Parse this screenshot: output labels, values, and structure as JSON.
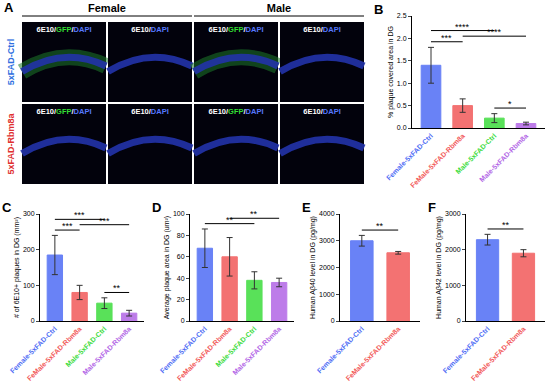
{
  "panel_a": {
    "panel": "A",
    "separator": "/",
    "groups": [
      "Female",
      "Male"
    ],
    "rows": [
      {
        "label": "5xFAD-Ctrl",
        "color": "#2f6fe0"
      },
      {
        "label": "5xFAD-Rbm8a",
        "color": "#e03030"
      }
    ],
    "columns": [
      [
        {
          "text": "6E10",
          "color": "#ffffff"
        },
        {
          "text": "GFP",
          "color": "#33dd33"
        },
        {
          "text": "DAPI",
          "color": "#5577ff"
        }
      ],
      [
        {
          "text": "6E10",
          "color": "#ffffff"
        },
        {
          "text": "DAPI",
          "color": "#5577ff"
        }
      ],
      [
        {
          "text": "6E10",
          "color": "#ffffff"
        },
        {
          "text": "GFP",
          "color": "#33dd33"
        },
        {
          "text": "DAPI",
          "color": "#5577ff"
        }
      ],
      [
        {
          "text": "6E10",
          "color": "#ffffff"
        },
        {
          "text": "DAPI",
          "color": "#5577ff"
        }
      ]
    ]
  },
  "chart_data": [
    {
      "type": "bar",
      "panel": "B",
      "y_label": "% plaque covered area in DG",
      "categories": [
        "Female-5xFAD-Ctrl",
        "FeMale-5xFAD-Rbm8a",
        "Male-5xFAD-Ctrl",
        "Male-5xFAD-Rbm8a"
      ],
      "colors": [
        "#4f6df5",
        "#f25a5a",
        "#3ddc3d",
        "#b266e6"
      ],
      "values": [
        1.4,
        0.5,
        0.22,
        0.1
      ],
      "error": [
        0.4,
        0.15,
        0.1,
        0.03
      ],
      "ylim": [
        0,
        2.5
      ],
      "yticks": [
        {
          "value": 0,
          "label": "0.0"
        },
        {
          "value": 0.5,
          "label": "0.5"
        },
        {
          "value": 1,
          "label": "1.0"
        },
        {
          "value": 1.5,
          "label": "1.5"
        },
        {
          "value": 2,
          "label": "2.0"
        },
        {
          "value": 2.5,
          "label": "2.5"
        }
      ],
      "comparisons": [
        {
          "pair": [
            0,
            1
          ],
          "label": "***"
        },
        {
          "pair": [
            2,
            3
          ],
          "label": "*"
        },
        {
          "pair": [
            1,
            3
          ],
          "label": "****"
        },
        {
          "pair": [
            0,
            2
          ],
          "label": "****"
        }
      ]
    },
    {
      "type": "bar",
      "panel": "C",
      "y_label": "# of 6E10+ plaques in DG (mm²)",
      "categories": [
        "Female-5xFAD-Ctrl",
        "FeMale-5xFAD-Rbm8a",
        "Male-5xFAD-Ctrl",
        "Male-5xFAD-Rbm8a"
      ],
      "colors": [
        "#4f6df5",
        "#f25a5a",
        "#3ddc3d",
        "#b266e6"
      ],
      "values": [
        185,
        80,
        50,
        22
      ],
      "error": [
        55,
        20,
        15,
        8
      ],
      "ylim": [
        0,
        300
      ],
      "yticks": [
        0,
        100,
        200,
        300
      ],
      "comparisons": [
        {
          "pair": [
            0,
            1
          ],
          "label": "***"
        },
        {
          "pair": [
            2,
            3
          ],
          "label": "**"
        },
        {
          "pair": [
            1,
            3
          ],
          "label": "***"
        },
        {
          "pair": [
            0,
            2
          ],
          "label": "***"
        }
      ]
    },
    {
      "type": "bar",
      "panel": "D",
      "y_label": "Average plaque area in DG (um²)",
      "categories": [
        "Female-5xFAD-Ctrl",
        "FeMale-5xFAD-Rbm8a",
        "Male-5xFAD-Ctrl",
        "Male-5xFAD-Rbm8a"
      ],
      "colors": [
        "#4f6df5",
        "#f25a5a",
        "#3ddc3d",
        "#b266e6"
      ],
      "values": [
        68,
        60,
        38,
        36
      ],
      "error": [
        18,
        18,
        8,
        4
      ],
      "ylim": [
        0,
        100
      ],
      "yticks": [
        0,
        20,
        40,
        60,
        80,
        100
      ],
      "comparisons": [
        {
          "pair": [
            0,
            2
          ],
          "label": "**"
        },
        {
          "pair": [
            1,
            3
          ],
          "label": "**"
        }
      ]
    },
    {
      "type": "bar",
      "panel": "E",
      "y_label": "Human Aβ40 level in DG (pg/mg)",
      "categories": [
        "Female-5xFAD-Ctrl",
        "FeMale-5xFAD-Rbm8a"
      ],
      "colors": [
        "#4f6df5",
        "#f25a5a"
      ],
      "values": [
        3000,
        2550
      ],
      "error": [
        200,
        50
      ],
      "ylim": [
        0,
        4000
      ],
      "yticks": [
        0,
        1000,
        2000,
        3000,
        4000
      ],
      "comparisons": [
        {
          "pair": [
            0,
            1
          ],
          "label": "**"
        }
      ]
    },
    {
      "type": "bar",
      "panel": "F",
      "y_label": "Human Aβ42 level in DG (pg/mg)",
      "categories": [
        "Female-5xFAD-Ctrl",
        "FeMale-5xFAD-Rbm8a"
      ],
      "colors": [
        "#4f6df5",
        "#f25a5a"
      ],
      "values": [
        2280,
        1900
      ],
      "error": [
        150,
        100
      ],
      "ylim": [
        0,
        3000
      ],
      "yticks": [
        0,
        1000,
        2000,
        3000
      ],
      "comparisons": [
        {
          "pair": [
            0,
            1
          ],
          "label": "**"
        }
      ]
    }
  ]
}
